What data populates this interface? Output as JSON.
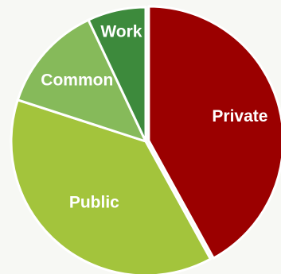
{
  "chart_data": {
    "type": "pie",
    "categories": [
      "Private",
      "Public",
      "Common",
      "Work"
    ],
    "values": [
      42,
      38,
      13,
      7
    ],
    "colors": [
      "#9b0000",
      "#a3c43c",
      "#86ba5a",
      "#3d8a3c"
    ],
    "title": "",
    "legend": "none",
    "start": "top",
    "direction": "clockwise"
  }
}
